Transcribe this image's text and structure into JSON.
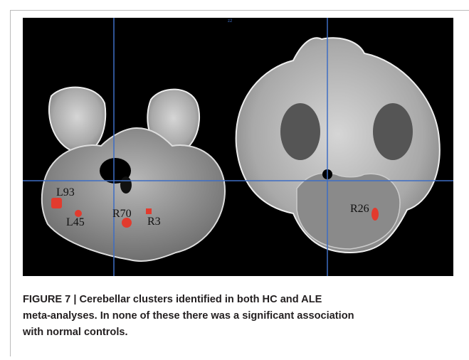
{
  "figure": {
    "marker": "z2",
    "labels": [
      "L93",
      "L45",
      "R70",
      "R3",
      "R26"
    ],
    "caption": [
      "FIGURE 7 | Cerebellar clusters identified in both HC and ALE",
      "meta-analyses. In none of these there was a significant association",
      "with normal controls."
    ]
  }
}
